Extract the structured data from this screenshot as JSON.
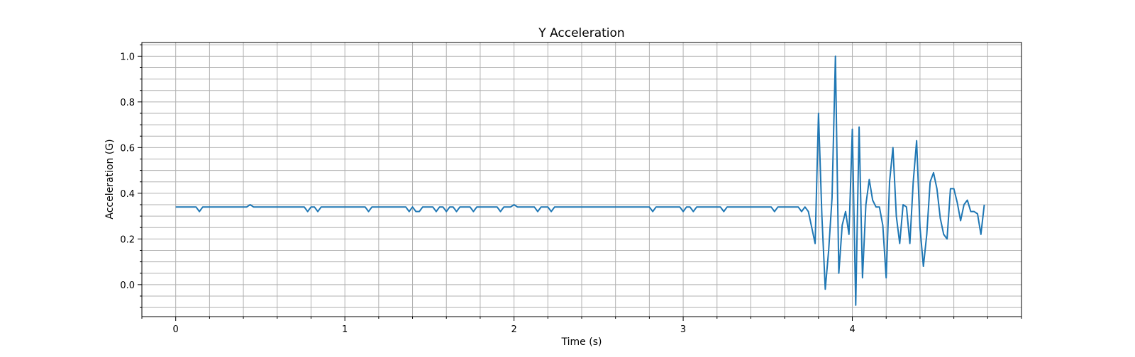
{
  "chart_data": {
    "type": "line",
    "title": "Y Acceleration",
    "xlabel": "Time (s)",
    "ylabel": "Acceleration (G)",
    "xlim": [
      -0.2,
      5.0
    ],
    "ylim": [
      -0.14,
      1.06
    ],
    "x_major_ticks": [
      0,
      1,
      2,
      3,
      4
    ],
    "x_tick_labels": [
      "0",
      "1",
      "2",
      "3",
      "4"
    ],
    "x_minor_step": 0.2,
    "y_major_ticks": [
      0.0,
      0.2,
      0.4,
      0.6,
      0.8,
      1.0
    ],
    "y_tick_labels": [
      "0.0",
      "0.2",
      "0.4",
      "0.6",
      "0.8",
      "1.0"
    ],
    "y_minor_step": 0.05,
    "grid": true,
    "line_color": "#1f77b4",
    "series": [
      {
        "x": [
          0,
          0.02,
          0.04,
          0.06,
          0.08,
          0.1,
          0.12,
          0.14,
          0.16,
          0.18,
          0.2,
          0.22,
          0.24,
          0.26,
          0.28,
          0.3,
          0.32,
          0.34,
          0.36,
          0.38,
          0.4,
          0.42,
          0.44,
          0.46,
          0.48,
          0.5,
          0.52,
          0.54,
          0.56,
          0.58,
          0.6,
          0.62,
          0.64,
          0.66,
          0.68,
          0.7,
          0.72,
          0.74,
          0.76,
          0.78,
          0.8,
          0.82,
          0.84,
          0.86,
          0.88,
          0.9,
          0.92,
          0.94,
          0.96,
          0.98,
          1.0,
          1.02,
          1.04,
          1.06,
          1.08,
          1.1,
          1.12,
          1.14,
          1.16,
          1.18,
          1.2,
          1.22,
          1.24,
          1.26,
          1.28,
          1.3,
          1.32,
          1.34,
          1.36,
          1.38,
          1.4,
          1.42,
          1.44,
          1.46,
          1.48,
          1.5,
          1.52,
          1.54,
          1.56,
          1.58,
          1.6,
          1.62,
          1.64,
          1.66,
          1.68,
          1.7,
          1.72,
          1.74,
          1.76,
          1.78,
          1.8,
          1.82,
          1.84,
          1.86,
          1.88,
          1.9,
          1.92,
          1.94,
          1.96,
          1.98,
          2.0,
          2.02,
          2.04,
          2.06,
          2.08,
          2.1,
          2.12,
          2.14,
          2.16,
          2.18,
          2.2,
          2.22,
          2.24,
          2.26,
          2.28,
          2.3,
          2.4,
          2.5,
          2.6,
          2.7,
          2.78,
          2.8,
          2.82,
          2.84,
          2.86,
          2.88,
          2.9,
          2.92,
          2.94,
          2.96,
          2.98,
          3.0,
          3.02,
          3.04,
          3.06,
          3.08,
          3.1,
          3.12,
          3.14,
          3.16,
          3.18,
          3.2,
          3.22,
          3.24,
          3.26,
          3.28,
          3.3,
          3.32,
          3.34,
          3.36,
          3.38,
          3.4,
          3.42,
          3.44,
          3.46,
          3.48,
          3.5,
          3.52,
          3.54,
          3.56,
          3.58,
          3.6,
          3.62,
          3.64,
          3.66,
          3.68,
          3.7,
          3.72,
          3.74,
          3.76,
          3.78,
          3.8,
          3.82,
          3.84,
          3.86,
          3.88,
          3.9,
          3.92,
          3.94,
          3.96,
          3.98,
          4.0,
          4.02,
          4.04,
          4.06,
          4.08,
          4.1,
          4.12,
          4.14,
          4.16,
          4.18,
          4.2,
          4.22,
          4.24,
          4.26,
          4.28,
          4.3,
          4.32,
          4.34,
          4.36,
          4.38,
          4.4,
          4.42,
          4.44,
          4.46,
          4.48,
          4.5,
          4.52,
          4.54,
          4.56,
          4.58,
          4.6,
          4.62,
          4.64,
          4.66,
          4.68,
          4.7,
          4.72,
          4.74,
          4.76,
          4.78
        ],
        "values": [
          0.34,
          0.34,
          0.34,
          0.34,
          0.34,
          0.34,
          0.34,
          0.32,
          0.34,
          0.34,
          0.34,
          0.34,
          0.34,
          0.34,
          0.34,
          0.34,
          0.34,
          0.34,
          0.34,
          0.34,
          0.34,
          0.34,
          0.35,
          0.34,
          0.34,
          0.34,
          0.34,
          0.34,
          0.34,
          0.34,
          0.34,
          0.34,
          0.34,
          0.34,
          0.34,
          0.34,
          0.34,
          0.34,
          0.34,
          0.32,
          0.34,
          0.34,
          0.32,
          0.34,
          0.34,
          0.34,
          0.34,
          0.34,
          0.34,
          0.34,
          0.34,
          0.34,
          0.34,
          0.34,
          0.34,
          0.34,
          0.34,
          0.32,
          0.34,
          0.34,
          0.34,
          0.34,
          0.34,
          0.34,
          0.34,
          0.34,
          0.34,
          0.34,
          0.34,
          0.32,
          0.34,
          0.32,
          0.32,
          0.34,
          0.34,
          0.34,
          0.34,
          0.32,
          0.34,
          0.34,
          0.32,
          0.34,
          0.34,
          0.32,
          0.34,
          0.34,
          0.34,
          0.34,
          0.32,
          0.34,
          0.34,
          0.34,
          0.34,
          0.34,
          0.34,
          0.34,
          0.32,
          0.34,
          0.34,
          0.34,
          0.35,
          0.34,
          0.34,
          0.34,
          0.34,
          0.34,
          0.34,
          0.32,
          0.34,
          0.34,
          0.34,
          0.32,
          0.34,
          0.34,
          0.34,
          0.34,
          0.34,
          0.34,
          0.34,
          0.34,
          0.34,
          0.34,
          0.32,
          0.34,
          0.34,
          0.34,
          0.34,
          0.34,
          0.34,
          0.34,
          0.34,
          0.32,
          0.34,
          0.34,
          0.32,
          0.34,
          0.34,
          0.34,
          0.34,
          0.34,
          0.34,
          0.34,
          0.34,
          0.32,
          0.34,
          0.34,
          0.34,
          0.34,
          0.34,
          0.34,
          0.34,
          0.34,
          0.34,
          0.34,
          0.34,
          0.34,
          0.34,
          0.34,
          0.32,
          0.34,
          0.34,
          0.34,
          0.34,
          0.34,
          0.34,
          0.34,
          0.32,
          0.34,
          0.32,
          0.25,
          0.18,
          0.75,
          0.3,
          -0.02,
          0.15,
          0.38,
          1.0,
          0.05,
          0.26,
          0.32,
          0.22,
          0.68,
          -0.09,
          0.69,
          0.03,
          0.35,
          0.46,
          0.37,
          0.34,
          0.34,
          0.26,
          0.03,
          0.45,
          0.6,
          0.3,
          0.18,
          0.35,
          0.34,
          0.18,
          0.45,
          0.63,
          0.25,
          0.08,
          0.22,
          0.45,
          0.49,
          0.42,
          0.29,
          0.22,
          0.2,
          0.42,
          0.42,
          0.36,
          0.28,
          0.35,
          0.37,
          0.32,
          0.32,
          0.31,
          0.22,
          0.35
        ]
      }
    ]
  }
}
